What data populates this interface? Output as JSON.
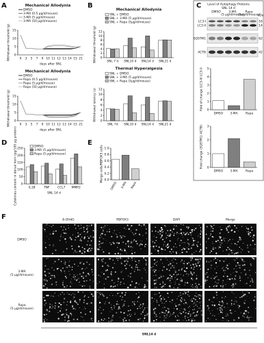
{
  "panels": [
    "A",
    "B",
    "C",
    "D",
    "E",
    "F"
  ],
  "chart_data": [
    {
      "type": "line",
      "title": "Mechanical Allodynia",
      "ylabel": "Withdrawal threshold (g)",
      "xlabel": "days after SNL",
      "categories": [
        "0",
        "3",
        "5",
        "7",
        "9",
        "10",
        "11",
        "12",
        "13",
        "14",
        "15",
        "21"
      ],
      "ylim": [
        0,
        15
      ],
      "yticks": [
        0,
        5,
        10,
        15
      ],
      "series": [
        {
          "name": "DMSO",
          "color": "#000000",
          "values": [
            12,
            4,
            4,
            3.5,
            3.5,
            3.5,
            3.5,
            3.5,
            3.5,
            3.5,
            4,
            5
          ]
        },
        {
          "name": "3-MA (0.5 μg/d/mouse)",
          "color": "#555555",
          "values": [
            12,
            4,
            4,
            3.5,
            3.5,
            4,
            4,
            4,
            4,
            4,
            4,
            5
          ]
        },
        {
          "name": "3-MA (5 μg/d/mouse)",
          "color": "#888888",
          "values": [
            12,
            4,
            4,
            3.5,
            3.5,
            5,
            5.5,
            5.5,
            5.5,
            5,
            4.5,
            5
          ]
        },
        {
          "name": "3-MA (50 μg/d/mouse)",
          "color": "#bbbbbb",
          "values": [
            12,
            4,
            4,
            3.5,
            3.5,
            5.5,
            6,
            6,
            6,
            5.5,
            5,
            5
          ]
        }
      ]
    },
    {
      "type": "line",
      "title": "Mechanical Allodynia",
      "ylabel": "Withdrawal threshold (g)",
      "xlabel": "days after SNL",
      "categories": [
        "0",
        "3",
        "5",
        "7",
        "9",
        "10",
        "11",
        "12",
        "13",
        "14",
        "15",
        "21"
      ],
      "ylim": [
        0,
        15
      ],
      "yticks": [
        0,
        5,
        10,
        15
      ],
      "series": [
        {
          "name": "DMSO",
          "color": "#000000",
          "values": [
            12,
            4,
            4,
            3.5,
            3.5,
            3.5,
            3.5,
            3.5,
            3.5,
            3.5,
            4,
            5
          ]
        },
        {
          "name": "Rapa (0.5 μg/d/mouse)",
          "color": "#555555",
          "values": [
            12,
            4,
            4,
            3.5,
            3.5,
            3,
            3,
            3,
            3,
            3,
            3.5,
            5
          ]
        },
        {
          "name": "Rapa (5 μg/d/mouse)",
          "color": "#888888",
          "values": [
            12,
            4,
            4,
            3.5,
            3.5,
            2.5,
            2.2,
            2.2,
            2.2,
            2.5,
            3,
            5
          ]
        },
        {
          "name": "Rapa (50 μg/d/mouse)",
          "color": "#bbbbbb",
          "values": [
            12,
            4,
            4,
            3.5,
            3.5,
            2,
            1.8,
            1.8,
            1.8,
            2,
            2.8,
            5
          ]
        }
      ]
    },
    {
      "type": "bar",
      "title": "Mechanical Allodynia",
      "ylabel": "Withdrawal threshold (g)",
      "categories": [
        "SNL 7 d",
        "SNL10 d",
        "SNL14 d",
        "SNL21 d"
      ],
      "ylim": [
        0,
        12
      ],
      "yticks": [
        0,
        2,
        4,
        6,
        8,
        10,
        12
      ],
      "series": [
        {
          "name": "SNL + DMSO",
          "color": "#ffffff",
          "values": [
            4.2,
            5.5,
            5,
            8
          ]
        },
        {
          "name": "SNL + 3-MA (5 μg/d/mouse)",
          "color": "#7f7f7f",
          "values": [
            4,
            9,
            10,
            8.2
          ]
        },
        {
          "name": "SNL + Rapa (5μg/d/mouse)",
          "color": "#d0d0d0",
          "values": [
            4.1,
            4.5,
            3.5,
            8.1
          ]
        }
      ]
    },
    {
      "type": "bar",
      "title": "Thermal Hyperalgesia",
      "ylabel": "Withdrawal latency (s)",
      "categories": [
        "SNL 7d",
        "SNL10 d",
        "SNL14 d",
        "SNL21 d"
      ],
      "ylim": [
        0,
        12
      ],
      "yticks": [
        0,
        2,
        4,
        6,
        8,
        10,
        12
      ],
      "series": [
        {
          "name": "SNL + DMSO",
          "color": "#ffffff",
          "values": [
            4.6,
            6.5,
            6,
            7.5
          ]
        },
        {
          "name": "SNL + 3-MA (5 μg/d/mouse)",
          "color": "#7f7f7f",
          "values": [
            4.5,
            9.5,
            9,
            7.6
          ]
        },
        {
          "name": "SNL + Rapa (5μg/d/mouse)",
          "color": "#d0d0d0",
          "values": [
            4.4,
            3,
            2.8,
            7.4
          ]
        }
      ]
    },
    {
      "type": "bar",
      "ylabel": "Fold of change (LC3-II/ LC3-I)",
      "categories": [
        "DMSO",
        "3-MA",
        "Rapa"
      ],
      "ylim": [
        0,
        5
      ],
      "yticks": [
        0,
        1,
        2,
        3,
        4,
        5
      ],
      "values": [
        1.1,
        0.5,
        3.7
      ],
      "colors": [
        "#ffffff",
        "#7f7f7f",
        "#d0d0d0"
      ]
    },
    {
      "type": "bar",
      "ylabel": "Fold change (SQSTM1/ ACTB)",
      "categories": [
        "DMSO",
        "3-MA",
        "Rapa"
      ],
      "ylim": [
        0,
        3
      ],
      "yticks": [
        0,
        1,
        2,
        3
      ],
      "values": [
        1,
        2.1,
        0.4
      ],
      "colors": [
        "#ffffff",
        "#7f7f7f",
        "#d0d0d0"
      ]
    },
    {
      "type": "bar",
      "ylabel": "Cytokines content in dorsal horn (pg/100 μg protein)",
      "xlabel": "SNL 14 d",
      "categories": [
        "IL1B",
        "TNF",
        "CCL7",
        "MMP2"
      ],
      "ylim": [
        0,
        250
      ],
      "yticks": [
        0,
        50,
        100,
        150,
        200,
        250
      ],
      "series": [
        {
          "name": "DMSO",
          "color": "#ffffff",
          "values": [
            120,
            125,
            105,
            180
          ]
        },
        {
          "name": "3-MA (5 μg/d/mouse)",
          "color": "#7f7f7f",
          "values": [
            135,
            145,
            140,
            210
          ]
        },
        {
          "name": "Rapa (5 μg/d/mouse)",
          "color": "#d0d0d0",
          "values": [
            85,
            70,
            60,
            120
          ]
        }
      ]
    },
    {
      "type": "bar",
      "ylabel": "Merge cells/RBFOX3 cells",
      "categories": [
        "DMSO",
        "3-MA",
        "Rapa"
      ],
      "ylim": [
        0,
        1
      ],
      "yticks": [
        {
          "value": 0,
          "label": "0.0"
        },
        0.2,
        0.4,
        0.6,
        0.8,
        {
          "value": 1,
          "label": "1.0"
        }
      ],
      "values": [
        0.65,
        0.78,
        0.35
      ],
      "colors": [
        "#ffffff",
        "#7f7f7f",
        "#d0d0d0"
      ]
    }
  ],
  "blot": {
    "title": "Level of Autophagy Proteins",
    "subtitle": "SNL 14 d",
    "lanes": [
      [
        "DMSO"
      ],
      [
        "3-MA",
        "(5 μg/d/mouse)"
      ],
      [
        "Rapa",
        "(5μg/d/mouse)"
      ]
    ],
    "bands": [
      "LC3-I",
      "LC3-II",
      "SQSTM1",
      "ACTB"
    ],
    "kda_header": "kDa",
    "kda": [
      "16",
      "14",
      "62",
      "42"
    ]
  },
  "microscopy": {
    "columns": [
      "8-OHdG",
      "RBFOX3",
      "DAPI",
      "Merge"
    ],
    "rows": [
      [
        "DMSO"
      ],
      [
        "3-MA",
        "(5 μg/d/mouse)"
      ],
      [
        "Rapa",
        "(5 μg/d/mouse)"
      ]
    ],
    "footer": "SNL14 d"
  }
}
